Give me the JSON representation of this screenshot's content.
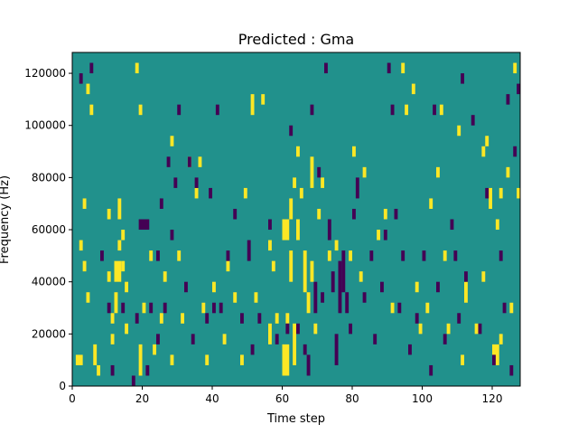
{
  "chart_data": {
    "type": "heatmap",
    "title": "Predicted : Gma",
    "xlabel": "Time step",
    "ylabel": "Frequency (Hz)",
    "xlim": [
      0,
      128
    ],
    "ylim": [
      0,
      128000
    ],
    "x_ticks": [
      0,
      20,
      40,
      60,
      80,
      100,
      120
    ],
    "y_ticks": [
      0,
      20000,
      40000,
      60000,
      80000,
      100000,
      120000
    ],
    "x_tick_labels": [
      "0",
      "20",
      "40",
      "60",
      "80",
      "100",
      "120"
    ],
    "y_tick_labels": [
      "0",
      "20000",
      "40000",
      "60000",
      "80000",
      "100000",
      "120000"
    ],
    "grid": false,
    "legend": "none",
    "value_levels": [
      0,
      1,
      2
    ],
    "colors": {
      "0": "#440154",
      "1": "#21918c",
      "2": "#fde725"
    },
    "background_value": 1,
    "cells": {
      "comment_units": "each cell = [time_step_start, time_step_end, freq_start_Hz, freq_end_Hz]",
      "yellow": [
        [
          1,
          3,
          8000,
          12000
        ],
        [
          4,
          5,
          112000,
          116000
        ],
        [
          5,
          6,
          104000,
          108000
        ],
        [
          3,
          4,
          68000,
          72000
        ],
        [
          2,
          3,
          52000,
          56000
        ],
        [
          3,
          4,
          44000,
          48000
        ],
        [
          4,
          5,
          32000,
          36000
        ],
        [
          6,
          7,
          8000,
          16000
        ],
        [
          7,
          8,
          4000,
          8000
        ],
        [
          10,
          11,
          64000,
          68000
        ],
        [
          10,
          11,
          40000,
          44000
        ],
        [
          11,
          12,
          24000,
          28000
        ],
        [
          11,
          12,
          16000,
          20000
        ],
        [
          12,
          13,
          28000,
          36000
        ],
        [
          12,
          14,
          40000,
          48000
        ],
        [
          13,
          14,
          52000,
          56000
        ],
        [
          13,
          14,
          64000,
          72000
        ],
        [
          14,
          15,
          56000,
          60000
        ],
        [
          14,
          15,
          44000,
          48000
        ],
        [
          15,
          16,
          36000,
          40000
        ],
        [
          15,
          16,
          20000,
          24000
        ],
        [
          18,
          19,
          120000,
          124000
        ],
        [
          19,
          20,
          104000,
          108000
        ],
        [
          19,
          20,
          4000,
          16000
        ],
        [
          20,
          21,
          28000,
          32000
        ],
        [
          22,
          23,
          48000,
          52000
        ],
        [
          23,
          24,
          12000,
          16000
        ],
        [
          25,
          26,
          24000,
          28000
        ],
        [
          26,
          27,
          40000,
          44000
        ],
        [
          28,
          29,
          92000,
          96000
        ],
        [
          28,
          29,
          8000,
          12000
        ],
        [
          30,
          31,
          48000,
          52000
        ],
        [
          31,
          32,
          24000,
          28000
        ],
        [
          33,
          34,
          84000,
          88000
        ],
        [
          35,
          36,
          72000,
          76000
        ],
        [
          36,
          37,
          84000,
          88000
        ],
        [
          37,
          38,
          28000,
          32000
        ],
        [
          38,
          39,
          8000,
          12000
        ],
        [
          40,
          41,
          36000,
          40000
        ],
        [
          43,
          44,
          16000,
          20000
        ],
        [
          44,
          45,
          44000,
          48000
        ],
        [
          46,
          47,
          32000,
          36000
        ],
        [
          48,
          49,
          8000,
          12000
        ],
        [
          49,
          50,
          72000,
          76000
        ],
        [
          51,
          52,
          104000,
          112000
        ],
        [
          52,
          53,
          32000,
          36000
        ],
        [
          54,
          55,
          108000,
          112000
        ],
        [
          56,
          57,
          16000,
          24000
        ],
        [
          56,
          57,
          52000,
          56000
        ],
        [
          57,
          58,
          44000,
          48000
        ],
        [
          58,
          59,
          24000,
          28000
        ],
        [
          60,
          62,
          4000,
          16000
        ],
        [
          60,
          62,
          56000,
          64000
        ],
        [
          61,
          62,
          24000,
          28000
        ],
        [
          62,
          63,
          64000,
          72000
        ],
        [
          62,
          63,
          40000,
          52000
        ],
        [
          63,
          64,
          8000,
          24000
        ],
        [
          63,
          64,
          76000,
          80000
        ],
        [
          64,
          65,
          88000,
          92000
        ],
        [
          64,
          65,
          56000,
          64000
        ],
        [
          65,
          66,
          72000,
          76000
        ],
        [
          66,
          67,
          36000,
          52000
        ],
        [
          67,
          68,
          28000,
          36000
        ],
        [
          68,
          69,
          76000,
          88000
        ],
        [
          68,
          69,
          40000,
          48000
        ],
        [
          69,
          70,
          20000,
          24000
        ],
        [
          70,
          71,
          64000,
          68000
        ],
        [
          71,
          72,
          76000,
          80000
        ],
        [
          73,
          74,
          48000,
          52000
        ],
        [
          75,
          76,
          52000,
          56000
        ],
        [
          79,
          80,
          48000,
          52000
        ],
        [
          80,
          81,
          88000,
          92000
        ],
        [
          82,
          83,
          40000,
          44000
        ],
        [
          83,
          84,
          80000,
          84000
        ],
        [
          87,
          88,
          56000,
          60000
        ],
        [
          89,
          90,
          64000,
          68000
        ],
        [
          91,
          92,
          28000,
          32000
        ],
        [
          94,
          95,
          120000,
          124000
        ],
        [
          95,
          96,
          104000,
          108000
        ],
        [
          97,
          98,
          112000,
          116000
        ],
        [
          98,
          99,
          36000,
          40000
        ],
        [
          99,
          100,
          20000,
          24000
        ],
        [
          101,
          102,
          28000,
          32000
        ],
        [
          102,
          103,
          68000,
          72000
        ],
        [
          104,
          105,
          80000,
          84000
        ],
        [
          105,
          106,
          104000,
          108000
        ],
        [
          106,
          107,
          48000,
          52000
        ],
        [
          107,
          108,
          20000,
          24000
        ],
        [
          110,
          111,
          96000,
          100000
        ],
        [
          111,
          112,
          8000,
          12000
        ],
        [
          112,
          113,
          32000,
          40000
        ],
        [
          115,
          116,
          20000,
          24000
        ],
        [
          117,
          118,
          88000,
          92000
        ],
        [
          117,
          118,
          40000,
          44000
        ],
        [
          118,
          119,
          92000,
          96000
        ],
        [
          119,
          120,
          68000,
          76000
        ],
        [
          120,
          122,
          8000,
          16000
        ],
        [
          121,
          122,
          60000,
          64000
        ],
        [
          122,
          123,
          72000,
          76000
        ],
        [
          122,
          123,
          16000,
          20000
        ],
        [
          124,
          125,
          80000,
          84000
        ],
        [
          125,
          126,
          28000,
          32000
        ],
        [
          127,
          128,
          72000,
          76000
        ],
        [
          126,
          127,
          120000,
          124000
        ]
      ],
      "purple": [
        [
          2,
          3,
          116000,
          120000
        ],
        [
          5,
          6,
          120000,
          124000
        ],
        [
          8,
          9,
          48000,
          52000
        ],
        [
          10,
          11,
          28000,
          32000
        ],
        [
          11,
          12,
          4000,
          8000
        ],
        [
          14,
          15,
          28000,
          32000
        ],
        [
          17,
          18,
          0,
          4000
        ],
        [
          18,
          19,
          24000,
          28000
        ],
        [
          19,
          22,
          60000,
          64000
        ],
        [
          21,
          22,
          4000,
          8000
        ],
        [
          22,
          23,
          28000,
          32000
        ],
        [
          24,
          25,
          48000,
          52000
        ],
        [
          24,
          25,
          16000,
          20000
        ],
        [
          25,
          26,
          68000,
          72000
        ],
        [
          26,
          27,
          28000,
          32000
        ],
        [
          27,
          28,
          84000,
          88000
        ],
        [
          28,
          29,
          56000,
          60000
        ],
        [
          29,
          30,
          76000,
          80000
        ],
        [
          30,
          31,
          104000,
          108000
        ],
        [
          32,
          33,
          36000,
          40000
        ],
        [
          33,
          34,
          84000,
          88000
        ],
        [
          34,
          35,
          16000,
          20000
        ],
        [
          35,
          36,
          76000,
          80000
        ],
        [
          38,
          39,
          24000,
          28000
        ],
        [
          39,
          40,
          72000,
          76000
        ],
        [
          40,
          41,
          28000,
          32000
        ],
        [
          41,
          42,
          104000,
          108000
        ],
        [
          42,
          43,
          28000,
          32000
        ],
        [
          44,
          45,
          48000,
          52000
        ],
        [
          46,
          47,
          64000,
          68000
        ],
        [
          48,
          49,
          24000,
          28000
        ],
        [
          50,
          51,
          48000,
          56000
        ],
        [
          51,
          52,
          12000,
          16000
        ],
        [
          53,
          54,
          24000,
          28000
        ],
        [
          56,
          57,
          60000,
          64000
        ],
        [
          58,
          59,
          16000,
          20000
        ],
        [
          61,
          62,
          20000,
          24000
        ],
        [
          62,
          63,
          96000,
          100000
        ],
        [
          64,
          65,
          20000,
          24000
        ],
        [
          66,
          67,
          12000,
          16000
        ],
        [
          67,
          68,
          4000,
          12000
        ],
        [
          68,
          69,
          104000,
          108000
        ],
        [
          69,
          70,
          28000,
          40000
        ],
        [
          70,
          71,
          80000,
          84000
        ],
        [
          71,
          72,
          32000,
          36000
        ],
        [
          72,
          73,
          120000,
          124000
        ],
        [
          73,
          74,
          56000,
          64000
        ],
        [
          74,
          75,
          36000,
          44000
        ],
        [
          75,
          76,
          8000,
          20000
        ],
        [
          76,
          77,
          28000,
          48000
        ],
        [
          77,
          78,
          36000,
          52000
        ],
        [
          78,
          79,
          28000,
          36000
        ],
        [
          79,
          80,
          20000,
          24000
        ],
        [
          80,
          81,
          64000,
          68000
        ],
        [
          81,
          82,
          72000,
          80000
        ],
        [
          83,
          84,
          32000,
          36000
        ],
        [
          85,
          86,
          48000,
          52000
        ],
        [
          86,
          87,
          16000,
          20000
        ],
        [
          88,
          89,
          36000,
          40000
        ],
        [
          89,
          90,
          56000,
          60000
        ],
        [
          90,
          91,
          120000,
          124000
        ],
        [
          91,
          92,
          104000,
          108000
        ],
        [
          92,
          93,
          64000,
          68000
        ],
        [
          93,
          94,
          28000,
          32000
        ],
        [
          94,
          95,
          48000,
          52000
        ],
        [
          96,
          97,
          12000,
          16000
        ],
        [
          98,
          99,
          24000,
          28000
        ],
        [
          100,
          101,
          48000,
          52000
        ],
        [
          102,
          103,
          4000,
          8000
        ],
        [
          103,
          104,
          104000,
          108000
        ],
        [
          104,
          105,
          36000,
          40000
        ],
        [
          106,
          107,
          16000,
          20000
        ],
        [
          108,
          109,
          60000,
          64000
        ],
        [
          109,
          110,
          48000,
          52000
        ],
        [
          110,
          111,
          24000,
          28000
        ],
        [
          111,
          112,
          116000,
          120000
        ],
        [
          112,
          113,
          40000,
          44000
        ],
        [
          114,
          115,
          100000,
          104000
        ],
        [
          116,
          117,
          20000,
          24000
        ],
        [
          118,
          119,
          72000,
          76000
        ],
        [
          120,
          121,
          8000,
          12000
        ],
        [
          122,
          123,
          48000,
          52000
        ],
        [
          123,
          124,
          28000,
          32000
        ],
        [
          124,
          125,
          108000,
          112000
        ],
        [
          125,
          126,
          4000,
          8000
        ],
        [
          126,
          127,
          88000,
          92000
        ],
        [
          127,
          128,
          112000,
          116000
        ]
      ]
    }
  }
}
